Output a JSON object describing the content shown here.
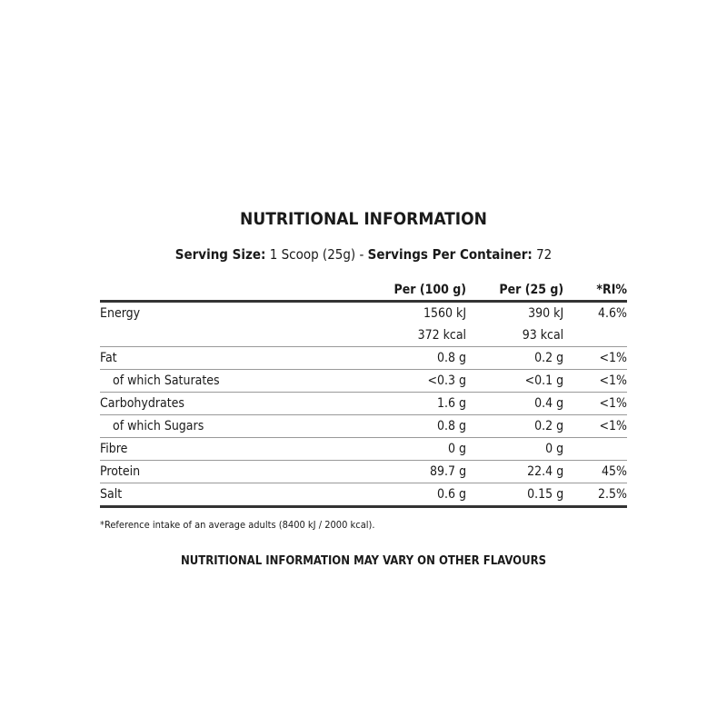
{
  "title": "NUTRITIONAL INFORMATION",
  "serving": {
    "size_label": "Serving Size:",
    "size_value": " 1 Scoop (25g) - ",
    "servings_label": "Servings Per Container:",
    "servings_value": " 72"
  },
  "table": {
    "headers": [
      "",
      "Per (100 g)",
      "Per (25 g)",
      "*RI%"
    ],
    "rows": [
      {
        "label": "Energy",
        "per100": "1560 kJ",
        "per25": "390 kJ",
        "ri": "4.6%"
      },
      {
        "label": "",
        "per100": "372 kcal",
        "per25": "93 kcal",
        "ri": ""
      },
      {
        "label": "Fat",
        "per100": "0.8 g",
        "per25": "0.2 g",
        "ri": "<1%"
      },
      {
        "label": "of which Saturates",
        "per100": "<0.3 g",
        "per25": "<0.1 g",
        "ri": "<1%"
      },
      {
        "label": "Carbohydrates",
        "per100": "1.6 g",
        "per25": "0.4 g",
        "ri": "<1%"
      },
      {
        "label": "of which Sugars",
        "per100": "0.8 g",
        "per25": "0.2 g",
        "ri": "<1%"
      },
      {
        "label": "Fibre",
        "per100": "0 g",
        "per25": "0 g",
        "ri": ""
      },
      {
        "label": "Protein",
        "per100": "89.7 g",
        "per25": "22.4 g",
        "ri": "45%"
      },
      {
        "label": "Salt",
        "per100": "0.6 g",
        "per25": "0.15 g",
        "ri": "2.5%"
      }
    ]
  },
  "footnote": "*Reference intake of an average adults (8400 kJ / 2000 kcal).",
  "disclaimer": "NUTRITIONAL INFORMATION MAY VARY ON OTHER FLAVOURS"
}
